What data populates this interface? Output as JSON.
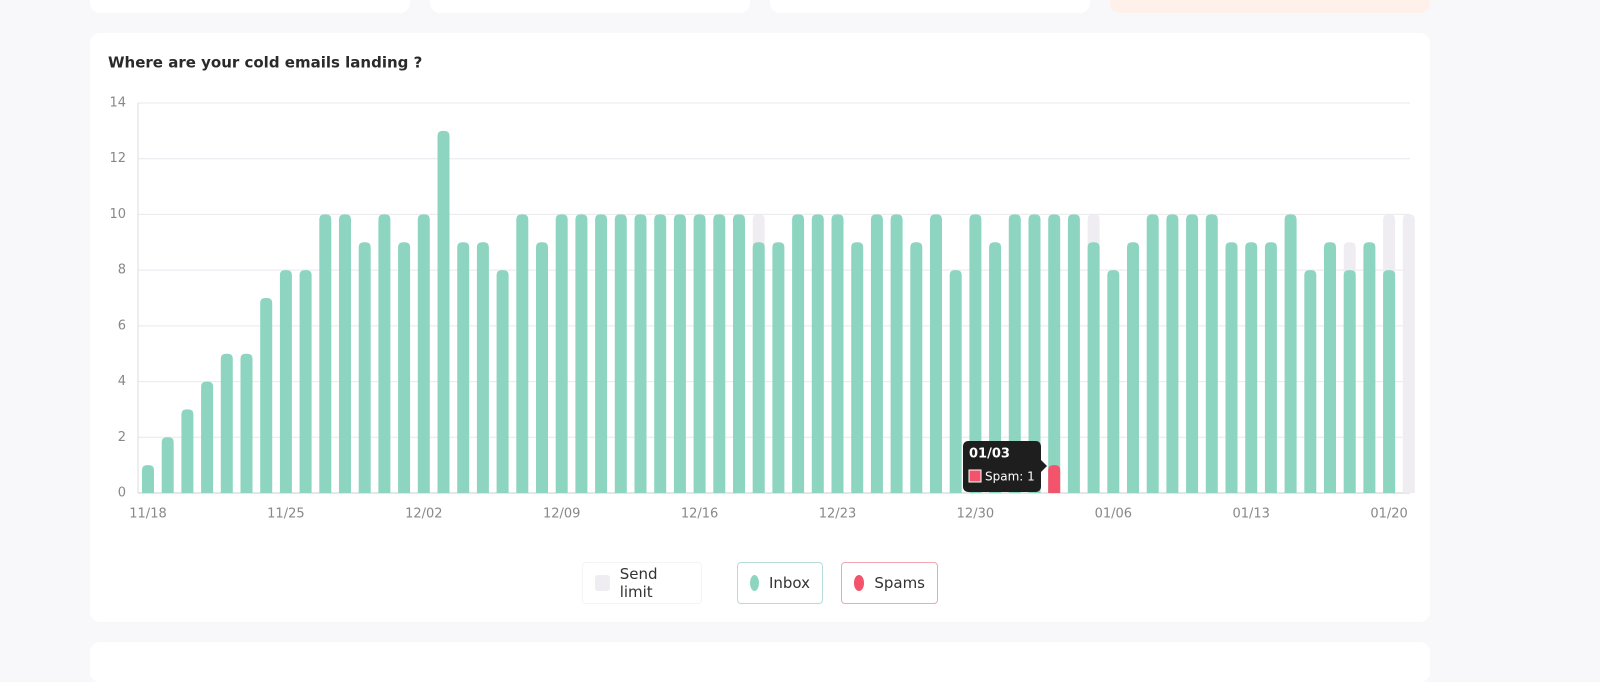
{
  "chart_data": {
    "type": "bar",
    "title": "Where are your cold emails landing ?",
    "categories": [
      "11/18",
      null,
      null,
      null,
      null,
      null,
      null,
      "11/25",
      null,
      null,
      null,
      null,
      null,
      null,
      "12/02",
      null,
      null,
      null,
      null,
      null,
      null,
      "12/09",
      null,
      null,
      null,
      null,
      null,
      null,
      "12/16",
      null,
      null,
      null,
      null,
      null,
      null,
      "12/23",
      null,
      null,
      null,
      null,
      null,
      null,
      "12/30",
      null,
      null,
      null,
      null,
      null,
      null,
      "01/06",
      null,
      null,
      null,
      null,
      null,
      null,
      "01/13",
      null,
      null,
      null,
      null,
      null,
      null,
      "01/20",
      null
    ],
    "series": [
      {
        "name": "Send limit",
        "color": "#efedf2",
        "values": [
          null,
          null,
          null,
          null,
          null,
          null,
          null,
          null,
          null,
          null,
          null,
          null,
          null,
          null,
          null,
          null,
          null,
          null,
          null,
          null,
          null,
          null,
          null,
          null,
          null,
          null,
          null,
          null,
          null,
          null,
          null,
          10,
          null,
          null,
          null,
          null,
          null,
          null,
          null,
          null,
          null,
          null,
          null,
          null,
          null,
          null,
          null,
          null,
          10,
          null,
          null,
          null,
          null,
          null,
          null,
          null,
          null,
          null,
          null,
          null,
          null,
          9,
          null,
          10,
          10
        ]
      },
      {
        "name": "Inbox",
        "color": "#8dd5c0",
        "values": [
          1,
          2,
          3,
          4,
          5,
          5,
          7,
          8,
          8,
          10,
          10,
          9,
          10,
          9,
          10,
          13,
          9,
          9,
          8,
          10,
          9,
          10,
          10,
          10,
          10,
          10,
          10,
          10,
          10,
          10,
          10,
          9,
          9,
          10,
          10,
          10,
          9,
          10,
          10,
          9,
          10,
          8,
          10,
          9,
          10,
          10,
          10,
          10,
          9,
          8,
          9,
          10,
          10,
          10,
          10,
          9,
          9,
          9,
          10,
          8,
          9,
          8,
          9,
          8,
          0
        ]
      },
      {
        "name": "Spams",
        "color": "#f4546b",
        "values": [
          null,
          null,
          null,
          null,
          null,
          null,
          null,
          null,
          null,
          null,
          null,
          null,
          null,
          null,
          null,
          null,
          null,
          null,
          null,
          null,
          null,
          null,
          null,
          null,
          null,
          null,
          null,
          null,
          null,
          null,
          null,
          null,
          null,
          null,
          null,
          null,
          null,
          null,
          null,
          null,
          null,
          null,
          null,
          null,
          null,
          null,
          1,
          null,
          null,
          null,
          null,
          null,
          null,
          null,
          null,
          null,
          null,
          null,
          null,
          null,
          null,
          null,
          null,
          null,
          null
        ]
      }
    ],
    "ylim": [
      0,
      14
    ],
    "yticks": [
      0,
      2,
      4,
      6,
      8,
      10,
      12,
      14
    ],
    "grid": true,
    "legend": "bottom",
    "tooltip": {
      "title": "01/03",
      "label": "Spam: 1"
    }
  }
}
